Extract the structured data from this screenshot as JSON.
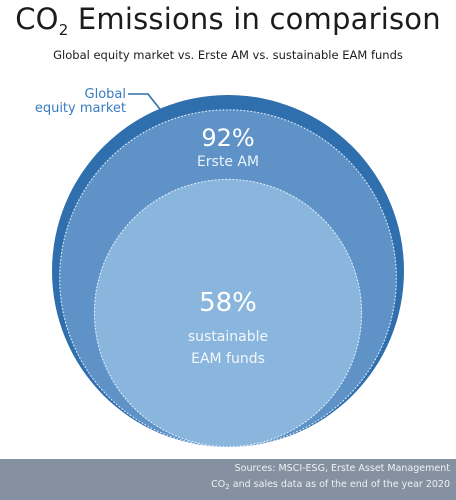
{
  "header": {
    "title_prefix": "CO",
    "title_sub": "2",
    "title_suffix": " Emissions in comparison",
    "subtitle": "Global equity market vs. Erste AM vs. sustainable EAM funds"
  },
  "chart_data": {
    "type": "nested-circles",
    "circles": [
      {
        "name_lines": [
          "Global",
          "equity market"
        ],
        "value": 100,
        "value_label": "",
        "color": "#2f6fad"
      },
      {
        "name_lines": [
          "Erste AM"
        ],
        "value": 92,
        "value_label": "92%",
        "color": "#5f93c8"
      },
      {
        "name_lines": [
          "sustainable",
          "EAM funds"
        ],
        "value": 58,
        "value_label": "58%",
        "color": "#8ab6de"
      }
    ]
  },
  "footer": {
    "line1": "Sources: MSCI-ESG, Erste Asset Management",
    "line2_prefix": "CO",
    "line2_sub": "2",
    "line2_suffix": " and sales data as of the end of the year 2020"
  }
}
